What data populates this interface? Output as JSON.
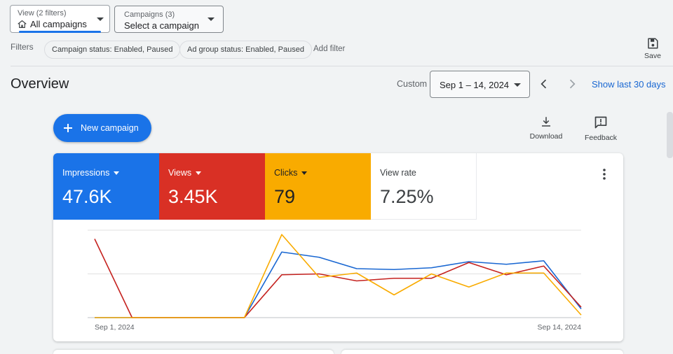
{
  "view": {
    "label": "View (2 filters)",
    "value": "All campaigns"
  },
  "campaigns": {
    "label": "Campaigns (3)",
    "value": "Select a campaign"
  },
  "filters": {
    "label": "Filters",
    "chips": [
      "Campaign status: Enabled, Paused",
      "Ad group status: Enabled, Paused"
    ],
    "add": "Add filter"
  },
  "save_label": "Save",
  "overview": {
    "title": "Overview",
    "custom_label": "Custom",
    "date_range": "Sep 1 – 14, 2024",
    "show_last": "Show last 30 days"
  },
  "new_campaign": "New campaign",
  "tools": {
    "download": "Download",
    "feedback": "Feedback"
  },
  "metrics": [
    {
      "label": "Impressions",
      "value": "47.6K",
      "color": "#1a73e8"
    },
    {
      "label": "Views",
      "value": "3.45K",
      "color": "#d93025"
    },
    {
      "label": "Clicks",
      "value": "79",
      "color": "#f9ab00"
    },
    {
      "label": "View rate",
      "value": "7.25%",
      "color": "#ffffff"
    }
  ],
  "chart_data": {
    "type": "line",
    "x": [
      "Sep 1",
      "Sep 2",
      "Sep 3",
      "Sep 4",
      "Sep 5",
      "Sep 6",
      "Sep 7",
      "Sep 8",
      "Sep 9",
      "Sep 10",
      "Sep 11",
      "Sep 12",
      "Sep 13",
      "Sep 14"
    ],
    "x_tick_labels": [
      "Sep 1, 2024",
      "Sep 14, 2024"
    ],
    "ylim": [
      0,
      100
    ],
    "grid": true,
    "series": [
      {
        "name": "Impressions",
        "color": "#1967d2",
        "values": [
          0,
          0,
          0,
          0,
          0,
          75,
          69,
          56,
          55,
          57,
          64,
          61,
          65,
          10
        ]
      },
      {
        "name": "Views",
        "color": "#c5221f",
        "values": [
          90,
          0,
          0,
          0,
          0,
          49,
          50,
          42,
          45,
          45,
          63,
          49,
          59,
          12
        ]
      },
      {
        "name": "Clicks",
        "color": "#f9ab00",
        "values": [
          0,
          0,
          0,
          0,
          0,
          95,
          46,
          51,
          26,
          50,
          35,
          51,
          51,
          3
        ]
      }
    ]
  }
}
